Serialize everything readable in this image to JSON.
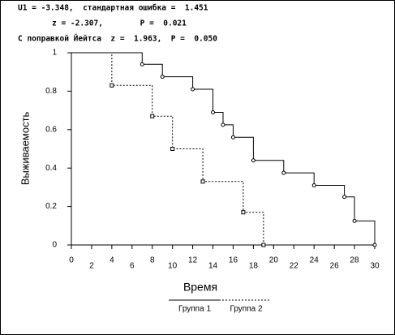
{
  "chart_data": {
    "type": "step",
    "annotations": [
      "U1 = -3.348,  стандартная ошибка =  1.451",
      "z = -2.307,        P =  0.021",
      "С поправкой Йейтса  z =  1.963,  P =  0.050"
    ],
    "xlabel": "Время",
    "ylabel": "Выживаемость",
    "xlim": [
      0,
      30
    ],
    "ylim": [
      0,
      1
    ],
    "xticks": [
      0,
      2,
      4,
      6,
      8,
      10,
      12,
      14,
      16,
      18,
      20,
      22,
      24,
      26,
      28,
      30
    ],
    "yticks": [
      0,
      0.2,
      0.4,
      0.6,
      0.8,
      1
    ],
    "series": [
      {
        "name": "Группа 1",
        "color": "#000000",
        "dash": "solid",
        "x": [
          0,
          7,
          9,
          12,
          14,
          15,
          16,
          18,
          21,
          24,
          27,
          28,
          30
        ],
        "values": [
          1,
          0.94,
          0.875,
          0.81,
          0.69,
          0.625,
          0.56,
          0.44,
          0.375,
          0.31,
          0.25,
          0.125,
          0
        ]
      },
      {
        "name": "Группа 2",
        "color": "#000000",
        "dash": "dotted",
        "x": [
          0,
          4,
          8,
          10,
          13,
          17,
          19
        ],
        "values": [
          1,
          0.83,
          0.67,
          0.5,
          0.33,
          0.17,
          0
        ]
      }
    ]
  }
}
